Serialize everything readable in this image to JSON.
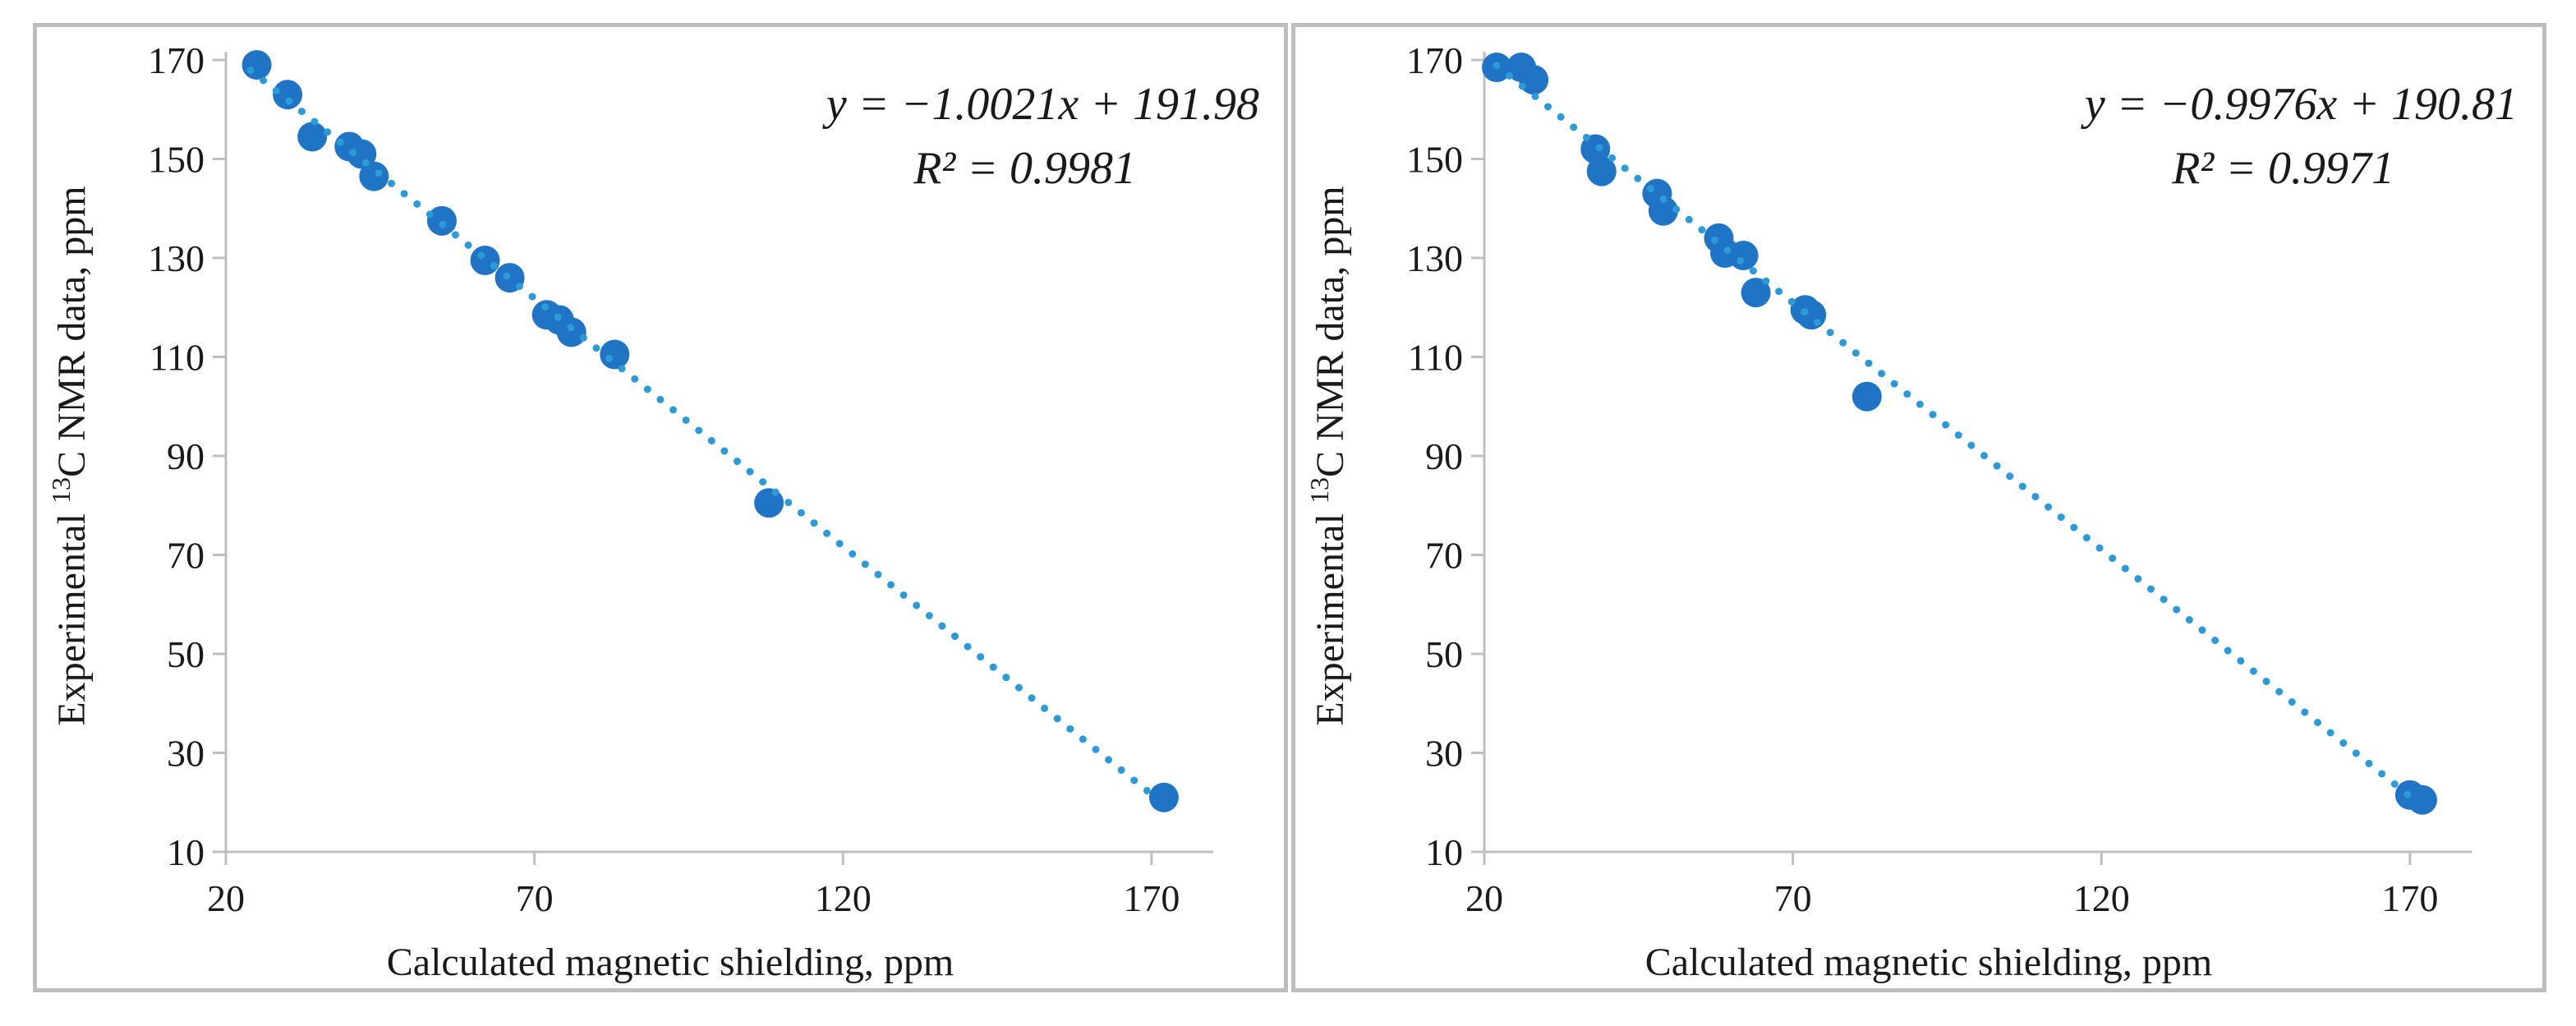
{
  "colors": {
    "marker": "#1f74c6",
    "trendline": "#2b9ad6",
    "axis": "#bfbfbf",
    "frame": "#bdbdbd",
    "text": "#1a1a1a"
  },
  "chart_data": [
    {
      "type": "scatter",
      "title": "",
      "xlabel": "Calculated magnetic shielding, ppm",
      "ylabel_prefix": "Experimental ",
      "ylabel_sup": "13",
      "ylabel_suffix": "C NMR data, ppm",
      "xlim": [
        20,
        180
      ],
      "ylim": [
        10,
        170
      ],
      "xticks": [
        20,
        70,
        120,
        170
      ],
      "yticks": [
        10,
        30,
        50,
        70,
        90,
        110,
        130,
        150,
        170
      ],
      "trendline": {
        "type": "linear",
        "slope": -1.0021,
        "intercept": 191.98,
        "style": "dotted",
        "x_range": [
          24,
          171
        ]
      },
      "equation": "y = −1.0021x + 191.98",
      "r_squared": "R² = 0.9981",
      "series": [
        {
          "name": "13C",
          "points": [
            [
              25,
              169
            ],
            [
              30,
              163
            ],
            [
              34,
              154.5
            ],
            [
              40,
              152.5
            ],
            [
              42,
              151
            ],
            [
              44,
              146.5
            ],
            [
              55,
              137.5
            ],
            [
              62,
              129.5
            ],
            [
              66,
              126
            ],
            [
              72,
              118.5
            ],
            [
              74,
              117.5
            ],
            [
              76,
              115
            ],
            [
              83,
              110.5
            ],
            [
              108,
              80.5
            ],
            [
              172,
              21
            ]
          ]
        }
      ]
    },
    {
      "type": "scatter",
      "title": "",
      "xlabel": "Calculated magnetic shielding, ppm",
      "ylabel_prefix": "Experimental ",
      "ylabel_sup": "13",
      "ylabel_suffix": "C NMR data, ppm",
      "xlim": [
        20,
        180
      ],
      "ylim": [
        10,
        170
      ],
      "xticks": [
        20,
        70,
        120,
        170
      ],
      "yticks": [
        10,
        30,
        50,
        70,
        90,
        110,
        130,
        150,
        170
      ],
      "trendline": {
        "type": "linear",
        "slope": -0.9976,
        "intercept": 190.81,
        "style": "dotted",
        "x_range": [
          22,
          171
        ]
      },
      "equation": "y = −0.9976x + 190.81",
      "r_squared": "R² = 0.9971",
      "series": [
        {
          "name": "13C",
          "points": [
            [
              22,
              168.5
            ],
            [
              26,
              168.5
            ],
            [
              28,
              166
            ],
            [
              38,
              152
            ],
            [
              39,
              147.5
            ],
            [
              48,
              143
            ],
            [
              49,
              139.5
            ],
            [
              58,
              134
            ],
            [
              59,
              131
            ],
            [
              62,
              130.5
            ],
            [
              64,
              123
            ],
            [
              72,
              119.5
            ],
            [
              73,
              118.5
            ],
            [
              82,
              102
            ],
            [
              170,
              21.5
            ],
            [
              172,
              20.5
            ]
          ]
        }
      ]
    }
  ]
}
